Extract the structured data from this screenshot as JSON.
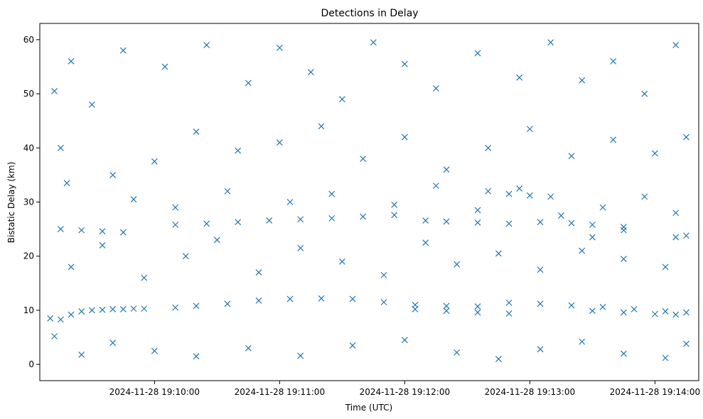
{
  "chart_data": {
    "type": "scatter",
    "title": "Detections in Delay",
    "xlabel": "Time (UTC)",
    "ylabel": "Bistatic Delay (km)",
    "x_tick_labels": [
      "2024-11-28 19:10:00",
      "2024-11-28 19:11:00",
      "2024-11-28 19:12:00",
      "2024-11-28 19:13:00",
      "2024-11-28 19:14:00"
    ],
    "x_ticks": [
      "19:10:00",
      "19:11:00",
      "19:12:00",
      "19:13:00",
      "19:14:00"
    ],
    "y_ticks": [
      0,
      10,
      20,
      30,
      40,
      50,
      60
    ],
    "xlim": [
      "19:09:05",
      "19:14:21"
    ],
    "ylim": [
      -3,
      63
    ],
    "grid": false,
    "marker": "x",
    "color": "#1f77b4",
    "series": [
      {
        "values_note": "approximate samples: [time, delay_km]",
        "points": [
          [
            "19:09:10",
            8.5
          ],
          [
            "19:09:15",
            8.3
          ],
          [
            "19:09:20",
            9.2
          ],
          [
            "19:09:25",
            9.8
          ],
          [
            "19:09:30",
            10.0
          ],
          [
            "19:09:35",
            10.1
          ],
          [
            "19:09:40",
            10.2
          ],
          [
            "19:09:45",
            10.2
          ],
          [
            "19:09:50",
            10.3
          ],
          [
            "19:09:55",
            10.3
          ],
          [
            "19:10:10",
            10.5
          ],
          [
            "19:10:20",
            10.8
          ],
          [
            "19:10:35",
            11.2
          ],
          [
            "19:10:50",
            11.8
          ],
          [
            "19:11:05",
            12.1
          ],
          [
            "19:11:20",
            12.2
          ],
          [
            "19:11:35",
            12.1
          ],
          [
            "19:11:50",
            11.5
          ],
          [
            "19:12:05",
            11.0
          ],
          [
            "19:12:20",
            10.8
          ],
          [
            "19:12:35",
            10.7
          ],
          [
            "19:12:50",
            11.4
          ],
          [
            "19:13:05",
            11.2
          ],
          [
            "19:13:20",
            10.9
          ],
          [
            "19:13:35",
            10.6
          ],
          [
            "19:13:50",
            10.2
          ],
          [
            "19:14:05",
            9.8
          ],
          [
            "19:14:15",
            9.6
          ],
          [
            "19:12:05",
            10.2
          ],
          [
            "19:12:20",
            9.9
          ],
          [
            "19:12:35",
            9.6
          ],
          [
            "19:12:50",
            9.4
          ],
          [
            "19:13:30",
            9.9
          ],
          [
            "19:13:45",
            9.6
          ],
          [
            "19:14:00",
            9.3
          ],
          [
            "19:14:10",
            9.2
          ],
          [
            "19:09:15",
            25.0
          ],
          [
            "19:09:25",
            24.8
          ],
          [
            "19:09:35",
            24.6
          ],
          [
            "19:09:45",
            24.4
          ],
          [
            "19:10:10",
            25.8
          ],
          [
            "19:10:25",
            26.0
          ],
          [
            "19:10:40",
            26.3
          ],
          [
            "19:10:55",
            26.6
          ],
          [
            "19:11:10",
            26.8
          ],
          [
            "19:11:25",
            27.0
          ],
          [
            "19:11:40",
            27.3
          ],
          [
            "19:11:55",
            27.6
          ],
          [
            "19:12:10",
            26.6
          ],
          [
            "19:12:20",
            26.4
          ],
          [
            "19:12:35",
            26.2
          ],
          [
            "19:12:50",
            26.0
          ],
          [
            "19:13:05",
            26.3
          ],
          [
            "19:13:20",
            26.1
          ],
          [
            "19:13:30",
            25.8
          ],
          [
            "19:13:45",
            25.4
          ],
          [
            "19:12:40",
            32.0
          ],
          [
            "19:12:50",
            31.5
          ],
          [
            "19:13:00",
            31.2
          ],
          [
            "19:13:10",
            31.0
          ],
          [
            "19:14:10",
            23.5
          ],
          [
            "19:14:15",
            23.8
          ],
          [
            "19:13:45",
            24.8
          ],
          [
            "19:13:30",
            23.5
          ],
          [
            "19:09:12",
            50.5
          ],
          [
            "19:09:20",
            56.0
          ],
          [
            "19:09:30",
            48.0
          ],
          [
            "19:09:45",
            58.0
          ],
          [
            "19:10:05",
            55.0
          ],
          [
            "19:10:25",
            59.0
          ],
          [
            "19:10:45",
            52.0
          ],
          [
            "19:11:00",
            58.5
          ],
          [
            "19:11:15",
            54.0
          ],
          [
            "19:11:30",
            49.0
          ],
          [
            "19:11:45",
            59.5
          ],
          [
            "19:12:00",
            55.5
          ],
          [
            "19:12:15",
            51.0
          ],
          [
            "19:12:35",
            57.5
          ],
          [
            "19:12:55",
            53.0
          ],
          [
            "19:13:10",
            59.5
          ],
          [
            "19:13:25",
            52.5
          ],
          [
            "19:13:40",
            56.0
          ],
          [
            "19:13:55",
            50.0
          ],
          [
            "19:14:10",
            59.0
          ],
          [
            "19:09:15",
            40.0
          ],
          [
            "19:09:40",
            35.0
          ],
          [
            "19:10:00",
            37.5
          ],
          [
            "19:10:20",
            43.0
          ],
          [
            "19:10:40",
            39.5
          ],
          [
            "19:11:00",
            41.0
          ],
          [
            "19:11:20",
            44.0
          ],
          [
            "19:11:40",
            38.0
          ],
          [
            "19:12:00",
            42.0
          ],
          [
            "19:12:20",
            36.0
          ],
          [
            "19:12:40",
            40.0
          ],
          [
            "19:13:00",
            43.5
          ],
          [
            "19:13:20",
            38.5
          ],
          [
            "19:13:40",
            41.5
          ],
          [
            "19:14:00",
            39.0
          ],
          [
            "19:14:15",
            42.0
          ],
          [
            "19:09:20",
            18.0
          ],
          [
            "19:09:35",
            22.0
          ],
          [
            "19:09:55",
            16.0
          ],
          [
            "19:10:15",
            20.0
          ],
          [
            "19:10:30",
            23.0
          ],
          [
            "19:10:50",
            17.0
          ],
          [
            "19:11:10",
            21.5
          ],
          [
            "19:11:30",
            19.0
          ],
          [
            "19:11:50",
            16.5
          ],
          [
            "19:12:10",
            22.5
          ],
          [
            "19:12:25",
            18.5
          ],
          [
            "19:12:45",
            20.5
          ],
          [
            "19:13:05",
            17.5
          ],
          [
            "19:13:25",
            21.0
          ],
          [
            "19:13:45",
            19.5
          ],
          [
            "19:14:05",
            18.0
          ],
          [
            "19:09:12",
            5.2
          ],
          [
            "19:09:25",
            1.8
          ],
          [
            "19:09:40",
            4.0
          ],
          [
            "19:10:00",
            2.5
          ],
          [
            "19:10:20",
            1.5
          ],
          [
            "19:10:45",
            3.0
          ],
          [
            "19:11:10",
            1.6
          ],
          [
            "19:11:35",
            3.5
          ],
          [
            "19:12:00",
            4.5
          ],
          [
            "19:12:25",
            2.2
          ],
          [
            "19:12:45",
            1.0
          ],
          [
            "19:13:05",
            2.8
          ],
          [
            "19:13:25",
            4.2
          ],
          [
            "19:13:45",
            2.0
          ],
          [
            "19:14:05",
            1.2
          ],
          [
            "19:14:15",
            3.8
          ],
          [
            "19:09:18",
            33.5
          ],
          [
            "19:09:50",
            30.5
          ],
          [
            "19:10:10",
            29.0
          ],
          [
            "19:10:35",
            32.0
          ],
          [
            "19:11:05",
            30.0
          ],
          [
            "19:11:25",
            31.5
          ],
          [
            "19:11:55",
            29.5
          ],
          [
            "19:12:15",
            33.0
          ],
          [
            "19:12:35",
            28.5
          ],
          [
            "19:12:55",
            32.5
          ],
          [
            "19:13:15",
            27.5
          ],
          [
            "19:13:35",
            29.0
          ],
          [
            "19:13:55",
            31.0
          ],
          [
            "19:14:10",
            28.0
          ]
        ]
      }
    ]
  }
}
